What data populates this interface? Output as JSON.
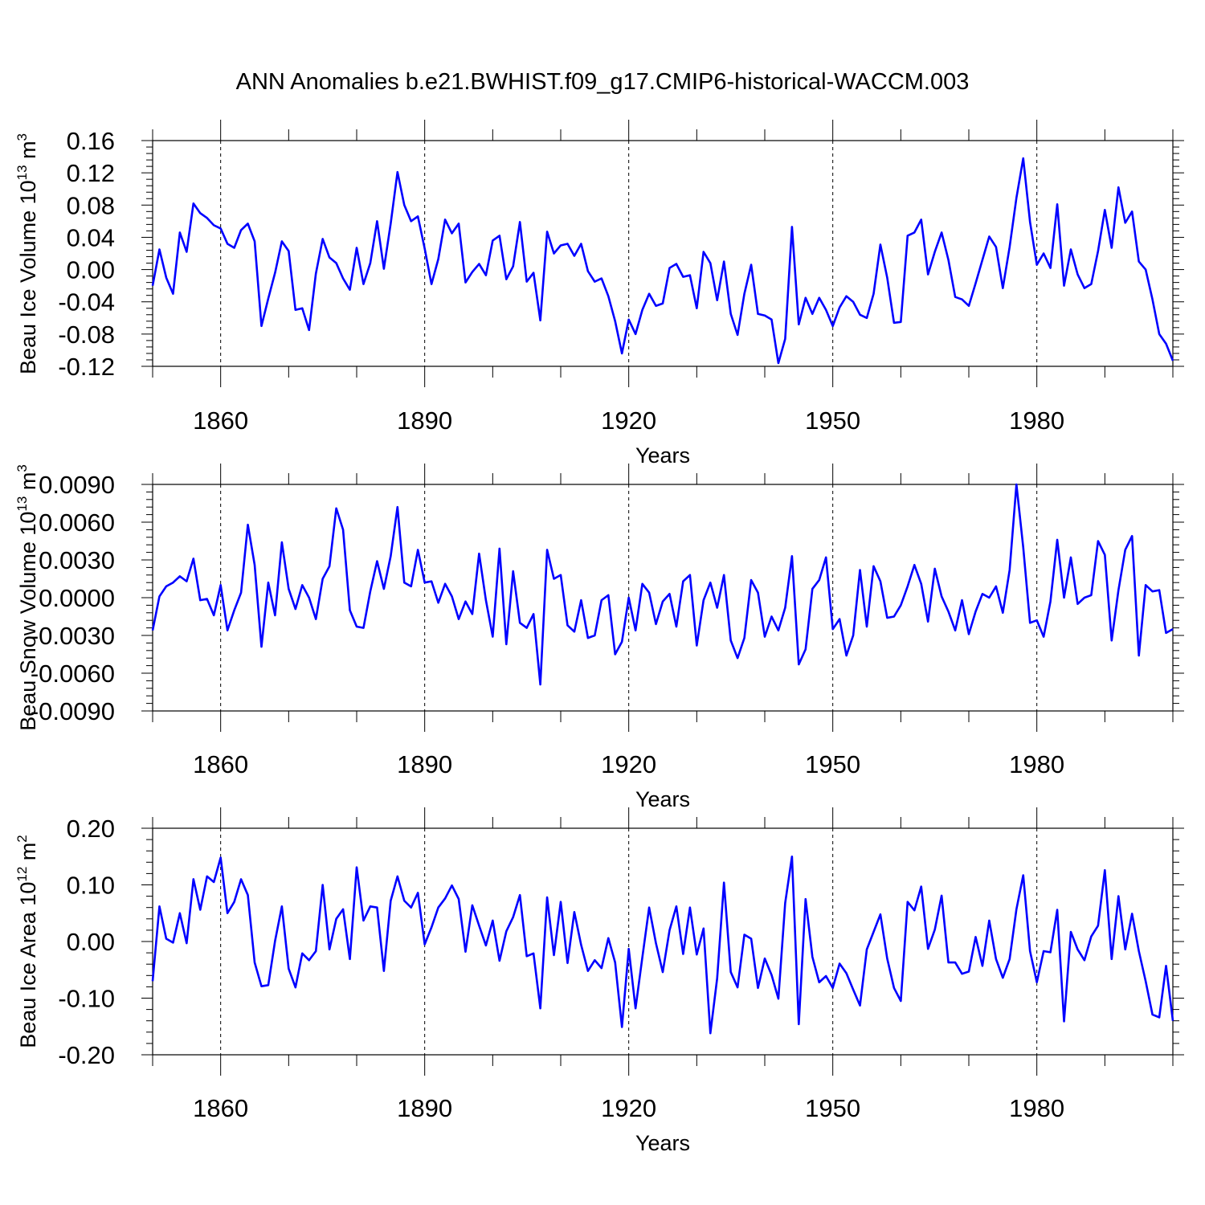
{
  "figure": {
    "title": "ANN Anomalies b.e21.BWHIST.f09_g17.CMIP6-historical-WACCM.003"
  },
  "chart_data": [
    {
      "type": "line",
      "title": "ANN Anomalies b.e21.BWHIST.f09_g17.CMIP6-historical-WACCM.003",
      "xlabel": "Years",
      "ylabel_main": "Beau Ice Volume 10",
      "ylabel_exp": "13",
      "ylabel_unit": " m",
      "ylabel_unit_exp": "3",
      "xlim": [
        1850,
        2000
      ],
      "ylim": [
        -0.12,
        0.16
      ],
      "yticks": [
        0.16,
        0.12,
        0.08,
        0.04,
        0.0,
        -0.04,
        -0.08,
        -0.12
      ],
      "ytick_labels": [
        "0.16",
        "0.12",
        "0.08",
        "0.04",
        "0.00",
        "-0.04",
        "-0.08",
        "-0.12"
      ],
      "xticks": [
        1860,
        1890,
        1920,
        1950,
        1980
      ],
      "xtick_labels": [
        "1860",
        "1890",
        "1920",
        "1950",
        "1980"
      ],
      "grid": "dashed vertical at major x ticks",
      "line_color": "#0000ff",
      "x_start": 1850,
      "values": [
        -0.02,
        0.025,
        -0.01,
        -0.03,
        0.046,
        0.022,
        0.082,
        0.07,
        0.064,
        0.055,
        0.051,
        0.032,
        0.027,
        0.049,
        0.057,
        0.035,
        -0.07,
        -0.036,
        -0.004,
        0.035,
        0.023,
        -0.05,
        -0.048,
        -0.075,
        -0.005,
        0.038,
        0.015,
        0.008,
        -0.011,
        -0.025,
        0.027,
        -0.018,
        0.008,
        0.06,
        0.001,
        0.057,
        0.121,
        0.08,
        0.06,
        0.066,
        0.026,
        -0.018,
        0.013,
        0.062,
        0.045,
        0.057,
        -0.016,
        -0.003,
        0.007,
        -0.007,
        0.036,
        0.042,
        -0.012,
        0.004,
        0.059,
        -0.015,
        -0.004,
        -0.063,
        0.047,
        0.02,
        0.03,
        0.032,
        0.017,
        0.032,
        -0.002,
        -0.015,
        -0.011,
        -0.033,
        -0.064,
        -0.104,
        -0.062,
        -0.08,
        -0.05,
        -0.03,
        -0.045,
        -0.042,
        0.002,
        0.007,
        -0.009,
        -0.007,
        -0.048,
        0.022,
        0.008,
        -0.038,
        0.01,
        -0.055,
        -0.081,
        -0.03,
        0.006,
        -0.055,
        -0.057,
        -0.062,
        -0.116,
        -0.086,
        0.053,
        -0.068,
        -0.035,
        -0.055,
        -0.035,
        -0.05,
        -0.07,
        -0.047,
        -0.033,
        -0.04,
        -0.056,
        -0.06,
        -0.03,
        0.031,
        -0.01,
        -0.066,
        -0.065,
        0.042,
        0.046,
        0.062,
        -0.006,
        0.022,
        0.046,
        0.012,
        -0.034,
        -0.037,
        -0.045,
        -0.017,
        0.012,
        0.041,
        0.028,
        -0.023,
        0.028,
        0.089,
        0.138,
        0.059,
        0.006,
        0.02,
        0.002,
        0.081,
        -0.02,
        0.025,
        -0.006,
        -0.023,
        -0.018,
        0.023,
        0.074,
        0.027,
        0.102,
        0.058,
        0.072,
        0.01,
        0.0,
        -0.037,
        -0.08,
        -0.092,
        -0.113
      ]
    },
    {
      "type": "line",
      "xlabel": "Years",
      "ylabel_main": "Beau Snow Volume 10",
      "ylabel_exp": "13",
      "ylabel_unit": " m",
      "ylabel_unit_exp": "3",
      "xlim": [
        1850,
        2000
      ],
      "ylim": [
        -0.009,
        0.009
      ],
      "yticks": [
        0.009,
        0.006,
        0.003,
        0.0,
        -0.003,
        -0.006,
        -0.009
      ],
      "ytick_labels": [
        "0.0090",
        "0.0060",
        "0.0030",
        "0.0000",
        "-0.0030",
        "-0.0060",
        "-0.0090"
      ],
      "xticks": [
        1860,
        1890,
        1920,
        1950,
        1980
      ],
      "xtick_labels": [
        "1860",
        "1890",
        "1920",
        "1950",
        "1980"
      ],
      "grid": "dashed vertical at major x ticks",
      "line_color": "#0000ff",
      "x_start": 1850,
      "values": [
        -0.0026,
        0.0001,
        0.0009,
        0.0012,
        0.0017,
        0.0013,
        0.0031,
        -0.0002,
        -0.0001,
        -0.0014,
        0.001,
        -0.0026,
        -0.001,
        0.0004,
        0.0058,
        0.0026,
        -0.0039,
        0.0012,
        -0.0014,
        0.0044,
        0.0007,
        -0.0009,
        0.001,
        0.0,
        -0.0017,
        0.0015,
        0.0025,
        0.0071,
        0.0054,
        -0.001,
        -0.0023,
        -0.0024,
        0.0005,
        0.0029,
        0.0007,
        0.0033,
        0.0072,
        0.0012,
        0.0009,
        0.0038,
        0.0012,
        0.0013,
        -0.0004,
        0.0011,
        0.0001,
        -0.0017,
        -0.0003,
        -0.0013,
        0.0035,
        -0.0002,
        -0.0031,
        0.0039,
        -0.0037,
        0.0021,
        -0.002,
        -0.0024,
        -0.0013,
        -0.0069,
        0.0038,
        0.0015,
        0.0018,
        -0.0022,
        -0.0027,
        -0.0002,
        -0.0032,
        -0.003,
        -0.0002,
        0.0002,
        -0.0045,
        -0.0035,
        0.0,
        -0.0026,
        0.0011,
        0.0004,
        -0.0021,
        -0.0003,
        0.0003,
        -0.0023,
        0.0013,
        0.0018,
        -0.0038,
        -0.0002,
        0.0012,
        -0.0008,
        0.0018,
        -0.0034,
        -0.0048,
        -0.0032,
        0.0014,
        0.0004,
        -0.0031,
        -0.0015,
        -0.0026,
        -0.0008,
        0.0033,
        -0.0053,
        -0.0041,
        0.0007,
        0.0014,
        0.0032,
        -0.0025,
        -0.0017,
        -0.0046,
        -0.003,
        0.0022,
        -0.0023,
        0.0025,
        0.0013,
        -0.0016,
        -0.0015,
        -0.0006,
        0.0009,
        0.0026,
        0.0011,
        -0.0019,
        0.0023,
        0.0001,
        -0.0011,
        -0.0026,
        -0.0002,
        -0.0029,
        -0.0011,
        0.0003,
        0.0,
        0.0009,
        -0.0012,
        0.0022,
        0.009,
        0.004,
        -0.002,
        -0.0018,
        -0.0031,
        -0.0003,
        0.0046,
        0.0,
        0.0032,
        -0.0005,
        0.0,
        0.0002,
        0.0045,
        0.0034,
        -0.0034,
        0.0006,
        0.0038,
        0.0049,
        -0.0046,
        0.001,
        0.0005,
        0.0006,
        -0.0028,
        -0.0025
      ]
    },
    {
      "type": "line",
      "xlabel": "Years",
      "ylabel_main": "Beau Ice Area 10",
      "ylabel_exp": "12",
      "ylabel_unit": " m",
      "ylabel_unit_exp": "2",
      "xlim": [
        1850,
        2000
      ],
      "ylim": [
        -0.2,
        0.2
      ],
      "yticks": [
        0.2,
        0.1,
        0.0,
        -0.1,
        -0.2
      ],
      "ytick_labels": [
        "0.20",
        "0.10",
        "0.00",
        "-0.10",
        "-0.20"
      ],
      "xticks": [
        1860,
        1890,
        1920,
        1950,
        1980
      ],
      "xtick_labels": [
        "1860",
        "1890",
        "1920",
        "1950",
        "1980"
      ],
      "grid": "dashed vertical at major x ticks",
      "line_color": "#0000ff",
      "x_start": 1850,
      "values": [
        -0.07,
        0.062,
        0.005,
        -0.002,
        0.05,
        -0.003,
        0.11,
        0.056,
        0.115,
        0.105,
        0.148,
        0.05,
        0.07,
        0.11,
        0.082,
        -0.037,
        -0.079,
        -0.077,
        0.001,
        0.062,
        -0.048,
        -0.081,
        -0.021,
        -0.033,
        -0.017,
        0.1,
        -0.014,
        0.04,
        0.057,
        -0.031,
        0.131,
        0.037,
        0.062,
        0.06,
        -0.052,
        0.072,
        0.115,
        0.072,
        0.06,
        0.086,
        -0.005,
        0.025,
        0.06,
        0.076,
        0.099,
        0.075,
        -0.018,
        0.064,
        0.028,
        -0.007,
        0.037,
        -0.034,
        0.018,
        0.043,
        0.082,
        -0.026,
        -0.021,
        -0.118,
        0.078,
        -0.024,
        0.07,
        -0.038,
        0.052,
        -0.006,
        -0.052,
        -0.033,
        -0.047,
        0.006,
        -0.037,
        -0.151,
        -0.013,
        -0.118,
        -0.028,
        0.06,
        -0.003,
        -0.054,
        0.02,
        0.062,
        -0.022,
        0.06,
        -0.023,
        0.023,
        -0.162,
        -0.065,
        0.104,
        -0.054,
        -0.081,
        0.012,
        0.005,
        -0.082,
        -0.03,
        -0.059,
        -0.101,
        0.068,
        0.15,
        -0.146,
        0.075,
        -0.027,
        -0.072,
        -0.061,
        -0.082,
        -0.039,
        -0.056,
        -0.085,
        -0.113,
        -0.014,
        0.017,
        0.048,
        -0.03,
        -0.082,
        -0.105,
        0.07,
        0.055,
        0.097,
        -0.013,
        0.021,
        0.081,
        -0.037,
        -0.037,
        -0.057,
        -0.053,
        0.008,
        -0.043,
        0.037,
        -0.031,
        -0.064,
        -0.031,
        0.057,
        0.117,
        -0.017,
        -0.072,
        -0.017,
        -0.019,
        0.056,
        -0.141,
        0.017,
        -0.014,
        -0.033,
        0.009,
        0.028,
        0.126,
        -0.031,
        0.08,
        -0.014,
        0.049,
        -0.017,
        -0.07,
        -0.129,
        -0.134,
        -0.043,
        -0.14
      ]
    }
  ]
}
